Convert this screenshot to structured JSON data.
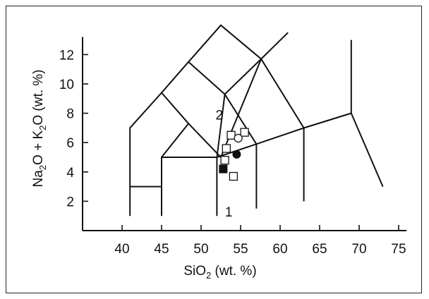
{
  "chart_data": {
    "type": "scatter",
    "title": "",
    "xlabel": {
      "main": "SiO",
      "sub": "2",
      "suffix": " (wt. %)"
    },
    "ylabel": {
      "a": "Na",
      "a_sub": "2",
      "b": "O + K",
      "b_sub": "2",
      "c": "O (wt. %)"
    },
    "xlim": [
      35,
      76
    ],
    "ylim": [
      0,
      14
    ],
    "xticks": [
      40,
      45,
      50,
      55,
      60,
      65,
      70,
      75
    ],
    "yticks": [
      2,
      4,
      6,
      8,
      10,
      12
    ],
    "grid": false,
    "field_labels": [
      {
        "text": "2",
        "x": 52.3,
        "y": 7.9
      },
      {
        "text": "1",
        "x": 53.5,
        "y": 1.3
      }
    ],
    "boundaries": [
      [
        [
          41,
          1
        ],
        [
          41,
          7.0
        ],
        [
          45,
          9.4
        ],
        [
          48.4,
          11.5
        ],
        [
          52.5,
          14
        ],
        [
          57.6,
          11.7
        ],
        [
          63,
          7.0
        ],
        [
          69,
          8.0
        ]
      ],
      [
        [
          45,
          9.4
        ],
        [
          48.4,
          7.3
        ],
        [
          52.5,
          5.0
        ],
        [
          57.6,
          11.7
        ]
      ],
      [
        [
          48.4,
          11.5
        ],
        [
          53,
          9.3
        ],
        [
          57.6,
          11.7
        ]
      ],
      [
        [
          53,
          9.3
        ],
        [
          57,
          5.9
        ]
      ],
      [
        [
          57.6,
          11.7
        ],
        [
          61,
          13.5
        ]
      ],
      [
        [
          45,
          1
        ],
        [
          45,
          5.0
        ],
        [
          52,
          5.0
        ],
        [
          52,
          1
        ]
      ],
      [
        [
          41,
          3.0
        ],
        [
          45,
          3.0
        ]
      ],
      [
        [
          45,
          5.0
        ],
        [
          48.4,
          7.3
        ]
      ],
      [
        [
          52,
          5.0
        ],
        [
          53,
          9.3
        ]
      ],
      [
        [
          57,
          5.9
        ],
        [
          57,
          1.5
        ]
      ],
      [
        [
          52,
          5.0
        ],
        [
          57,
          5.9
        ],
        [
          63,
          7.0
        ],
        [
          63,
          2.0
        ]
      ],
      [
        [
          63,
          7.0
        ],
        [
          69,
          8.0
        ],
        [
          73,
          3.0
        ]
      ],
      [
        [
          69,
          8.0
        ],
        [
          69,
          13
        ]
      ]
    ],
    "series": [
      {
        "marker": "open-square",
        "points": [
          [
            53.8,
            6.5
          ],
          [
            55.5,
            6.7
          ],
          [
            53.2,
            5.6
          ],
          [
            53.0,
            4.8
          ],
          [
            54.1,
            3.7
          ]
        ]
      },
      {
        "marker": "open-circle",
        "points": [
          [
            54.7,
            6.3
          ]
        ]
      },
      {
        "marker": "filled-circle",
        "points": [
          [
            54.5,
            5.2
          ]
        ]
      },
      {
        "marker": "filled-square",
        "points": [
          [
            52.8,
            4.2
          ]
        ]
      }
    ]
  }
}
